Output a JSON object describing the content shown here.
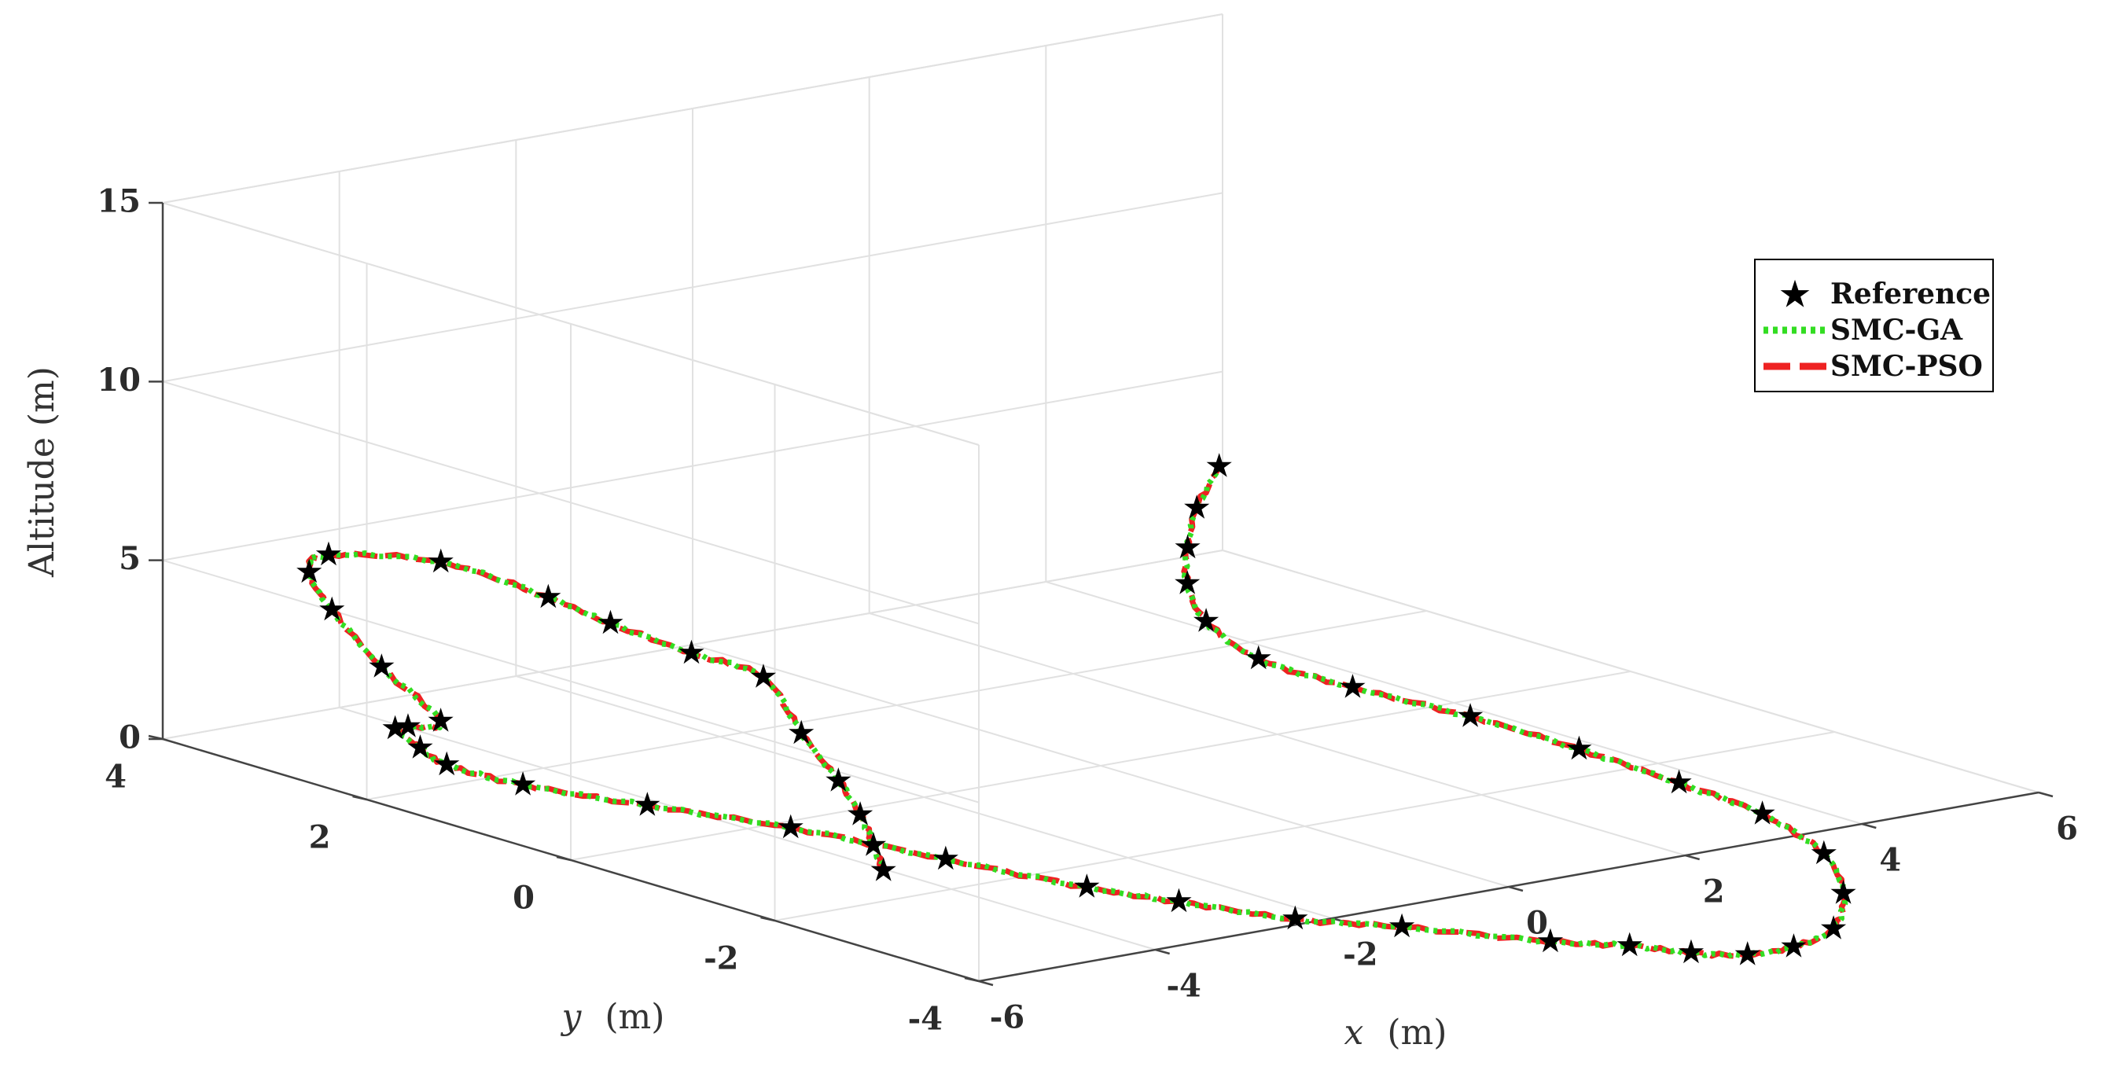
{
  "chart_data": {
    "type": "line3d",
    "title": "",
    "xlabel": {
      "var": "x",
      "unit": "(m)"
    },
    "ylabel": {
      "var": "y",
      "unit": "(m)"
    },
    "zlabel": "Altitude (m)",
    "xlim": [
      -6,
      6
    ],
    "ylim": [
      -4,
      4
    ],
    "zlim": [
      0,
      15
    ],
    "x_ticks": [
      "-6",
      "-4",
      "-2",
      "0",
      "2",
      "4",
      "6"
    ],
    "y_ticks": [
      "-4",
      "-2",
      "0",
      "2",
      "4"
    ],
    "z_ticks": [
      "0",
      "5",
      "10",
      "15"
    ],
    "grid": true,
    "box": true,
    "legend_position": "top-right",
    "colors": {
      "reference": "#000000",
      "smc_ga": "#33dd22",
      "smc_pso": "#ee2222"
    },
    "series": [
      {
        "name": "Reference",
        "style": "star-markers",
        "color": "#000000",
        "points": [
          [
            -6.04,
            -3.1,
            2.35
          ],
          [
            -5.98,
            -2.95,
            2.9
          ],
          [
            -5.9,
            -2.75,
            3.55
          ],
          [
            -5.8,
            -2.45,
            4.2
          ],
          [
            -5.7,
            -2.0,
            5.1
          ],
          [
            -5.61,
            -1.55,
            6.25
          ],
          [
            -5.5,
            -0.75,
            6.2
          ],
          [
            -5.32,
            0.2,
            6.15
          ],
          [
            -5.1,
            1.0,
            6.1
          ],
          [
            -4.93,
            2.2,
            6.0
          ],
          [
            -4.7,
            3.5,
            5.0
          ],
          [
            -4.4,
            3.95,
            4.0
          ],
          [
            -4.2,
            3.9,
            2.9
          ],
          [
            -4.1,
            3.5,
            1.6
          ],
          [
            -3.95,
            3.05,
            0.4
          ],
          [
            -3.8,
            3.5,
            -0.2
          ],
          [
            -3.6,
            3.8,
            -0.6
          ],
          [
            -3.2,
            3.9,
            -1.4
          ],
          [
            -2.9,
            3.9,
            -2.0
          ],
          [
            -2.5,
            3.5,
            -2.4
          ],
          [
            -1.9,
            2.8,
            -2.65
          ],
          [
            -1.2,
            2.0,
            -2.9
          ],
          [
            -0.6,
            1.0,
            -3.2
          ],
          [
            -0.1,
            0.05,
            -3.4
          ],
          [
            0.25,
            -0.55,
            -3.45
          ],
          [
            0.7,
            -1.3,
            -3.5
          ],
          [
            1.1,
            -2.0,
            -3.3
          ],
          [
            1.8,
            -2.85,
            -3.3
          ],
          [
            2.35,
            -3.15,
            -3.4
          ],
          [
            2.7,
            -3.45,
            -3.5
          ],
          [
            3.05,
            -3.7,
            -3.5
          ],
          [
            3.4,
            -3.85,
            -3.3
          ],
          [
            3.85,
            -3.85,
            -3.0
          ],
          [
            4.25,
            -3.6,
            -2.4
          ],
          [
            4.55,
            -3.15,
            -1.8
          ],
          [
            4.72,
            -2.4,
            -1.4
          ],
          [
            4.7,
            -1.6,
            -1.2
          ],
          [
            4.55,
            -0.75,
            -0.9
          ],
          [
            4.3,
            0.1,
            -0.6
          ],
          [
            3.95,
            0.95,
            -0.35
          ],
          [
            3.75,
            1.7,
            -0.1
          ],
          [
            3.85,
            2.3,
            0.4
          ],
          [
            4.1,
            2.7,
            1.0
          ],
          [
            4.45,
            3.0,
            1.6
          ],
          [
            4.9,
            3.3,
            2.25
          ],
          [
            5.5,
            3.6,
            2.9
          ]
        ]
      },
      {
        "name": "SMC-GA",
        "style": "dotted",
        "color": "#33dd22"
      },
      {
        "name": "SMC-PSO",
        "style": "dashed",
        "color": "#ee2222"
      }
    ]
  }
}
